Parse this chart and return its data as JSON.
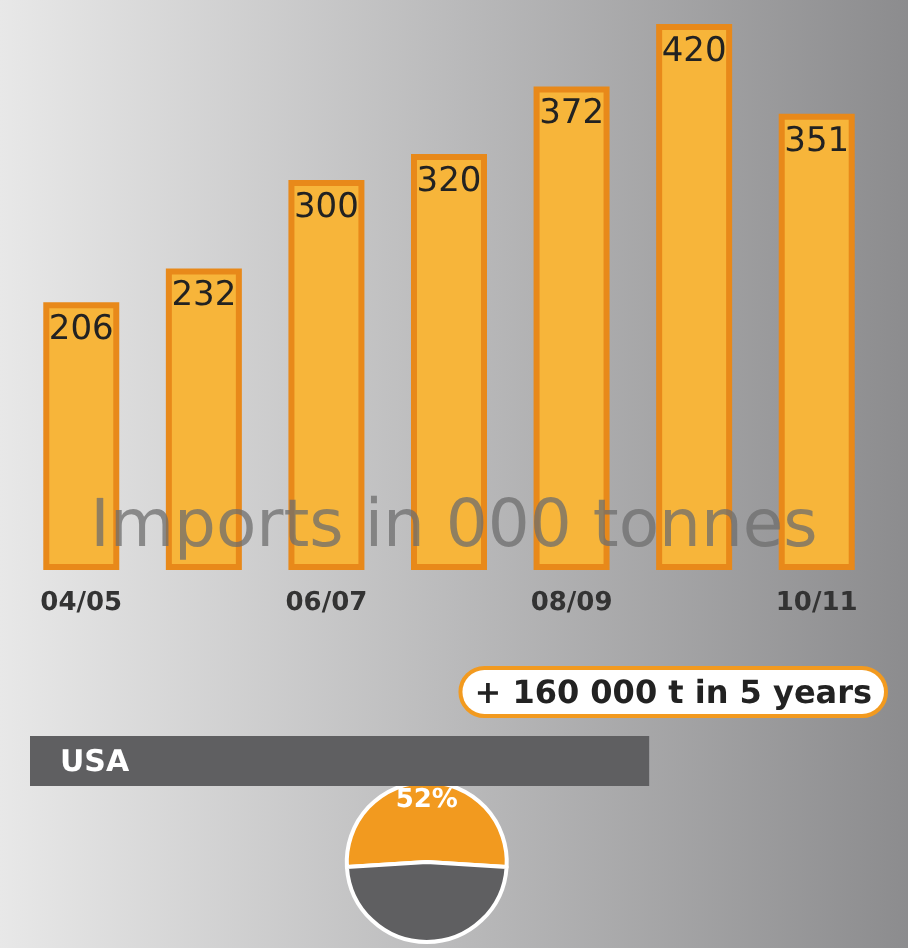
{
  "chart_data": [
    {
      "type": "bar",
      "categories": [
        "04/05",
        null,
        "06/07",
        null,
        "08/09",
        null,
        "10/11"
      ],
      "values": [
        206,
        232,
        300,
        320,
        372,
        420,
        351
      ],
      "color": "#f7b53a",
      "data_labels": true,
      "xlabel": "Imports in 000 tonnes",
      "annotations": [
        "+ 160 000 t in 5 years"
      ]
    },
    {
      "type": "pie",
      "title": "USA",
      "categories": [
        null,
        null
      ],
      "values": [
        52,
        48
      ],
      "colors": [
        "#f29a1f",
        "#5f5f61"
      ],
      "value_labels": [
        "52%",
        null
      ]
    }
  ]
}
